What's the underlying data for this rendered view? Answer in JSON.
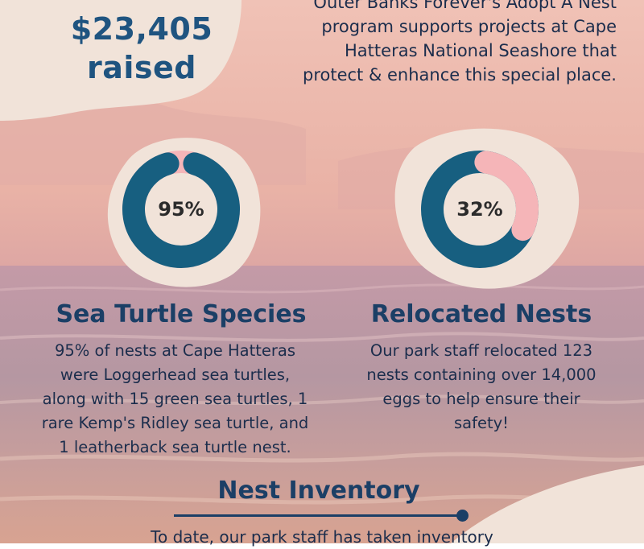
{
  "colors": {
    "accent_dark": "#1b3f66",
    "ring_teal": "#175f80",
    "ring_pink": "#f5b5b8",
    "blob_cream": "#f1e3d9",
    "sky_pink": "#eab4a6"
  },
  "header": {
    "amount": "$23,405",
    "amount_suffix": "raised",
    "intro_lines": [
      "Outer Banks Forever's Adopt A Nest",
      "program supports projects at Cape",
      "Hatteras National Seashore that",
      "protect & enhance this special place."
    ]
  },
  "stats": [
    {
      "percent_label": "95%",
      "percent": 95,
      "title": "Sea Turtle Species",
      "lines": [
        "95% of nests at Cape Hatteras",
        "were Loggerhead sea turtles,",
        "along with 15 green sea turtles, 1",
        "rare Kemp's Ridley sea turtle, and",
        "1 leatherback sea turtle nest."
      ]
    },
    {
      "percent_label": "32%",
      "percent": 32,
      "title": "Relocated Nests",
      "lines": [
        "Our park staff relocated 123",
        "nests containing over 14,000",
        "eggs to help ensure their",
        "safety!"
      ]
    }
  ],
  "inventory": {
    "title": "Nest Inventory",
    "text": "To date, our park staff has taken inventory"
  }
}
